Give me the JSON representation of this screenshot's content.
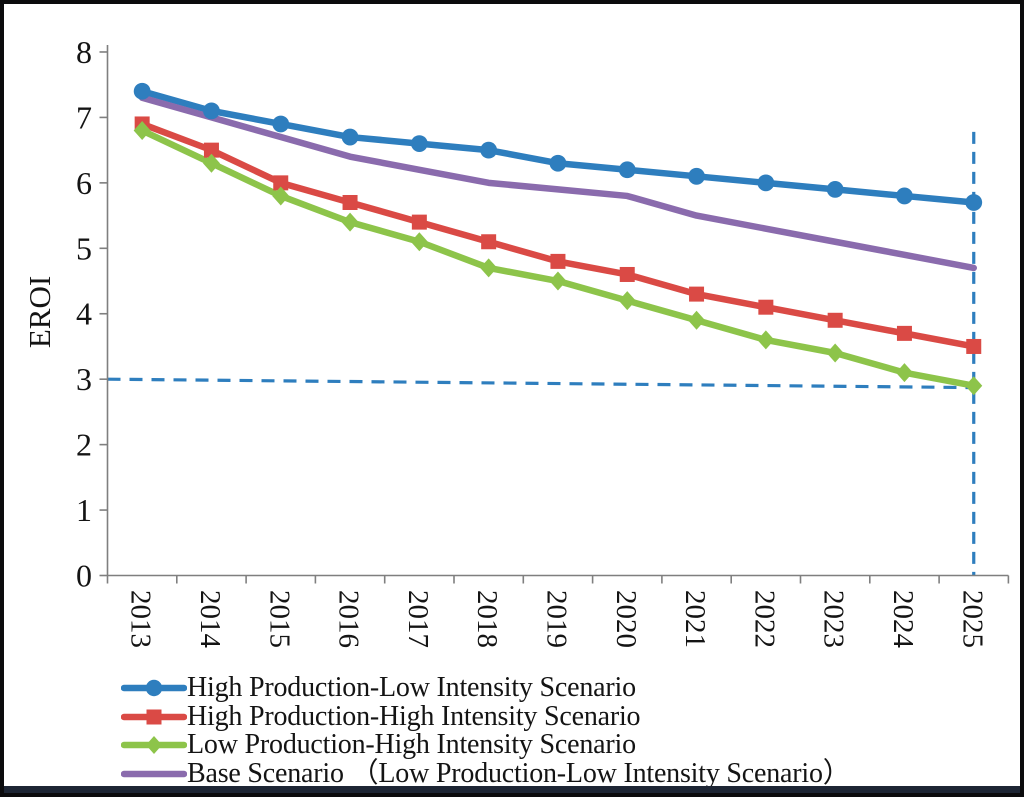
{
  "figure": {
    "y_axis_title": "EROI",
    "legend_position": "bottom-left",
    "frame_color": "#0b0b0d",
    "axis_color": "#7f7f7f",
    "dashed_line_color": "#2E7EBE"
  },
  "chart_data": {
    "type": "line",
    "title": "",
    "xlabel": "",
    "ylabel": "EROI",
    "ylim": [
      0,
      8
    ],
    "yticks": [
      0,
      1,
      2,
      3,
      4,
      5,
      6,
      7,
      8
    ],
    "grid": false,
    "legend_position": "bottom-left",
    "categories": [
      "2013",
      "2014",
      "2015",
      "2016",
      "2017",
      "2018",
      "2019",
      "2020",
      "2021",
      "2022",
      "2023",
      "2024",
      "2025"
    ],
    "series": [
      {
        "name": "High Production-Low Intensity Scenario",
        "color": "#2E7EBE",
        "marker": "circle",
        "values": [
          7.4,
          7.1,
          6.9,
          6.7,
          6.6,
          6.5,
          6.3,
          6.2,
          6.1,
          6.0,
          5.9,
          5.8,
          5.7
        ]
      },
      {
        "name": "High Production-High Intensity Scenario",
        "color": "#DA4A45",
        "marker": "square",
        "values": [
          6.9,
          6.5,
          6.0,
          5.7,
          5.4,
          5.1,
          4.8,
          4.6,
          4.3,
          4.1,
          3.9,
          3.7,
          3.5
        ]
      },
      {
        "name": "Low Production-High Intensity Scenario",
        "color": "#8DC44A",
        "marker": "diamond",
        "values": [
          6.8,
          6.3,
          5.8,
          5.4,
          5.1,
          4.7,
          4.5,
          4.2,
          3.9,
          3.6,
          3.4,
          3.1,
          2.9
        ]
      },
      {
        "name": "Base Scenario （Low Production-Low Intensity Scenario）",
        "color": "#8A6BAD",
        "marker": "none",
        "values": [
          7.3,
          7.0,
          6.7,
          6.4,
          6.2,
          6.0,
          5.9,
          5.8,
          5.5,
          5.3,
          5.1,
          4.9,
          4.7
        ]
      }
    ],
    "annotations": {
      "threshold_line": {
        "style": "dashed",
        "color": "#2E7EBE",
        "value_start": 3.0,
        "value_end": 2.87,
        "x_start": "2013-axis",
        "x_end": "past 2025"
      },
      "vertical_line": {
        "style": "dashed",
        "color": "#2E7EBE",
        "at_category": "2025",
        "value_top": 6.78,
        "value_bottom": 0
      }
    }
  }
}
